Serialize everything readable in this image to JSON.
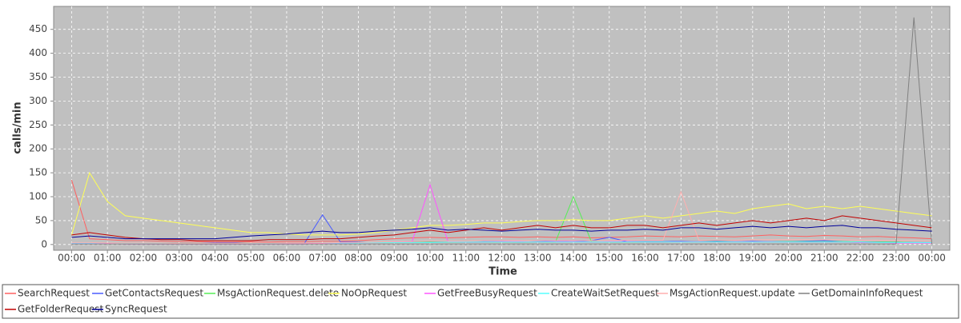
{
  "chart_data": {
    "type": "line",
    "y_label": "calls/min",
    "x_label": "Time",
    "x": [
      0,
      0.5,
      1,
      1.5,
      2,
      2.5,
      3,
      3.5,
      4,
      4.5,
      5,
      5.5,
      6,
      6.5,
      7,
      7.5,
      8,
      8.5,
      9,
      9.5,
      10,
      10.5,
      11,
      11.5,
      12,
      12.5,
      13,
      13.5,
      14,
      14.5,
      15,
      15.5,
      16,
      16.5,
      17,
      17.5,
      18,
      18.5,
      19,
      19.5,
      20,
      20.5,
      21,
      21.5,
      22,
      22.5,
      23,
      23.5,
      24
    ],
    "xlim": [
      -0.5,
      24.5
    ],
    "xticks": [
      {
        "value": 0,
        "label": "00:00"
      },
      {
        "value": 1,
        "label": "01:00"
      },
      {
        "value": 2,
        "label": "02:00"
      },
      {
        "value": 3,
        "label": "03:00"
      },
      {
        "value": 4,
        "label": "04:00"
      },
      {
        "value": 5,
        "label": "05:00"
      },
      {
        "value": 6,
        "label": "06:00"
      },
      {
        "value": 7,
        "label": "07:00"
      },
      {
        "value": 8,
        "label": "08:00"
      },
      {
        "value": 9,
        "label": "09:00"
      },
      {
        "value": 10,
        "label": "10:00"
      },
      {
        "value": 11,
        "label": "11:00"
      },
      {
        "value": 12,
        "label": "12:00"
      },
      {
        "value": 13,
        "label": "13:00"
      },
      {
        "value": 14,
        "label": "14:00"
      },
      {
        "value": 15,
        "label": "15:00"
      },
      {
        "value": 16,
        "label": "16:00"
      },
      {
        "value": 17,
        "label": "17:00"
      },
      {
        "value": 18,
        "label": "18:00"
      },
      {
        "value": 19,
        "label": "19:00"
      },
      {
        "value": 20,
        "label": "20:00"
      },
      {
        "value": 21,
        "label": "21:00"
      },
      {
        "value": 22,
        "label": "22:00"
      },
      {
        "value": 23,
        "label": "23:00"
      },
      {
        "value": 24,
        "label": "00:00"
      }
    ],
    "ylim": [
      -12,
      498
    ],
    "yticks": [
      0,
      50,
      100,
      150,
      200,
      250,
      300,
      350,
      400,
      450
    ],
    "grid": true,
    "series": [
      {
        "name": "SearchRequest",
        "color": "#ff6060",
        "values": [
          135,
          12,
          10,
          8,
          8,
          7,
          6,
          6,
          5,
          5,
          6,
          5,
          6,
          6,
          7,
          7,
          8,
          10,
          12,
          14,
          15,
          14,
          15,
          16,
          16,
          15,
          16,
          15,
          16,
          14,
          15,
          16,
          18,
          17,
          16,
          18,
          17,
          16,
          18,
          20,
          18,
          17,
          19,
          18,
          16,
          17,
          15,
          14,
          12
        ]
      },
      {
        "name": "GetContactsRequest",
        "color": "#4a5cff",
        "values": [
          3,
          3,
          2,
          2,
          2,
          2,
          2,
          2,
          3,
          3,
          3,
          3,
          3,
          3,
          62,
          5,
          5,
          4,
          5,
          5,
          6,
          6,
          5,
          6,
          6,
          5,
          6,
          7,
          6,
          8,
          15,
          6,
          6,
          6,
          7,
          6,
          7,
          6,
          7,
          6,
          6,
          7,
          8,
          6,
          5,
          5,
          5,
          4,
          4
        ]
      },
      {
        "name": "MsgActionRequest.delete",
        "color": "#55ee55",
        "values": [
          3,
          3,
          2,
          2,
          2,
          2,
          2,
          2,
          2,
          2,
          3,
          3,
          3,
          3,
          3,
          3,
          4,
          4,
          4,
          4,
          5,
          5,
          5,
          5,
          5,
          5,
          5,
          5,
          100,
          6,
          5,
          5,
          5,
          5,
          6,
          6,
          6,
          6,
          6,
          6,
          6,
          6,
          6,
          6,
          5,
          5,
          5,
          4,
          4
        ]
      },
      {
        "name": "NoOpRequest",
        "color": "#ffff55",
        "values": [
          20,
          150,
          90,
          60,
          55,
          50,
          45,
          40,
          35,
          30,
          25,
          25,
          22,
          20,
          20,
          20,
          22,
          25,
          30,
          35,
          40,
          40,
          42,
          45,
          45,
          48,
          50,
          50,
          52,
          50,
          50,
          55,
          60,
          55,
          60,
          65,
          70,
          65,
          75,
          80,
          85,
          75,
          80,
          75,
          80,
          75,
          70,
          65,
          60
        ]
      },
      {
        "name": "GetFreeBusyRequest",
        "color": "#ff55ff",
        "values": [
          2,
          2,
          2,
          1,
          1,
          1,
          1,
          1,
          1,
          1,
          1,
          1,
          1,
          1,
          2,
          2,
          3,
          4,
          5,
          6,
          125,
          6,
          5,
          5,
          6,
          6,
          5,
          6,
          6,
          5,
          6,
          6,
          5,
          5,
          6,
          6,
          5,
          6,
          6,
          6,
          5,
          5,
          5,
          5,
          4,
          4,
          3,
          3,
          3
        ]
      },
      {
        "name": "CreateWaitSetRequest",
        "color": "#55ffff",
        "values": [
          3,
          3,
          3,
          2,
          2,
          2,
          2,
          2,
          2,
          2,
          2,
          2,
          3,
          3,
          3,
          3,
          3,
          4,
          4,
          4,
          4,
          5,
          5,
          5,
          5,
          5,
          5,
          5,
          5,
          5,
          5,
          5,
          5,
          5,
          5,
          5,
          5,
          5,
          5,
          5,
          5,
          5,
          5,
          5,
          5,
          4,
          4,
          4,
          4
        ]
      },
      {
        "name": "MsgActionRequest.update",
        "color": "#ffafaf",
        "values": [
          4,
          4,
          3,
          3,
          3,
          3,
          2,
          2,
          2,
          2,
          3,
          3,
          3,
          3,
          3,
          4,
          4,
          5,
          6,
          6,
          7,
          7,
          7,
          8,
          8,
          8,
          8,
          8,
          8,
          8,
          8,
          9,
          9,
          9,
          110,
          9,
          9,
          9,
          10,
          10,
          10,
          10,
          10,
          10,
          9,
          9,
          8,
          8,
          7
        ]
      },
      {
        "name": "GetDomainInfoRequest",
        "color": "#808080",
        "values": [
          1,
          1,
          1,
          1,
          1,
          1,
          1,
          1,
          1,
          1,
          1,
          1,
          1,
          1,
          1,
          1,
          1,
          1,
          1,
          1,
          1,
          1,
          1,
          1,
          1,
          1,
          1,
          1,
          1,
          1,
          1,
          1,
          1,
          1,
          1,
          1,
          1,
          1,
          1,
          1,
          1,
          1,
          1,
          1,
          1,
          1,
          1,
          475,
          1
        ]
      },
      {
        "name": "GetFolderRequest",
        "color": "#c00000",
        "values": [
          20,
          25,
          20,
          15,
          12,
          10,
          10,
          8,
          8,
          8,
          8,
          10,
          10,
          10,
          12,
          12,
          15,
          18,
          20,
          25,
          30,
          25,
          30,
          35,
          30,
          35,
          40,
          35,
          40,
          35,
          35,
          40,
          40,
          35,
          40,
          45,
          40,
          45,
          50,
          45,
          50,
          55,
          50,
          60,
          55,
          50,
          45,
          40,
          35
        ]
      },
      {
        "name": "SyncRequest",
        "color": "#000099",
        "values": [
          15,
          18,
          15,
          12,
          12,
          12,
          12,
          12,
          12,
          15,
          18,
          20,
          22,
          25,
          28,
          25,
          25,
          28,
          30,
          32,
          35,
          30,
          32,
          30,
          28,
          30,
          32,
          30,
          30,
          28,
          30,
          30,
          32,
          30,
          35,
          35,
          32,
          35,
          38,
          35,
          38,
          35,
          38,
          40,
          35,
          35,
          32,
          30,
          28
        ]
      }
    ]
  }
}
